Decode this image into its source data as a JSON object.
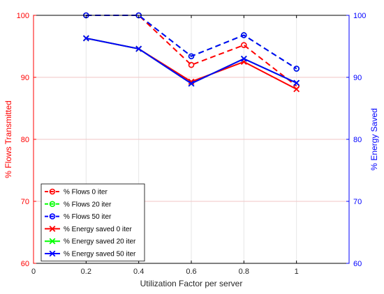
{
  "chart_data": {
    "type": "line",
    "xlabel": "Utilization Factor per server",
    "ylabel_left": "% Flows Transmitted",
    "ylabel_right": "% Energy Saved",
    "xlim": [
      0,
      1.2
    ],
    "ylim_left": [
      60,
      100
    ],
    "ylim_right": [
      60,
      100
    ],
    "x_ticks": [
      "0",
      "0.2",
      "0.4",
      "0.6",
      "0.8",
      "1"
    ],
    "y_ticks_left": [
      "60",
      "70",
      "80",
      "90",
      "100"
    ],
    "y_ticks_right": [
      "60",
      "70",
      "80",
      "90",
      "100"
    ],
    "grid": true,
    "legend_position": "bottom-left",
    "colors": {
      "left_axis": "#ff0000",
      "right_axis": "#0000ff",
      "grid": "#f2c6c6"
    },
    "x": [
      0.2,
      0.4,
      0.6,
      0.8,
      1.0
    ],
    "series": [
      {
        "name": "% Flows 0 iter",
        "color": "#ff0000",
        "dash": true,
        "marker": "circle",
        "values": [
          100,
          100,
          92.0,
          95.2,
          88.6
        ]
      },
      {
        "name": "% Flows 20 iter",
        "color": "#00ff00",
        "dash": true,
        "marker": "circle",
        "values": [
          100,
          100,
          93.4,
          96.8,
          91.4
        ]
      },
      {
        "name": "% Flows 50 iter",
        "color": "#0000ff",
        "dash": true,
        "marker": "circle",
        "values": [
          100,
          100,
          93.4,
          96.8,
          91.4
        ]
      },
      {
        "name": "% Energy saved 0 iter",
        "color": "#ff0000",
        "dash": false,
        "marker": "x",
        "values": [
          96.3,
          94.6,
          89.3,
          92.5,
          88.1
        ]
      },
      {
        "name": "% Energy saved 20 iter",
        "color": "#00ff00",
        "dash": false,
        "marker": "x",
        "values": [
          96.3,
          94.6,
          89.0,
          93.0,
          89.1
        ]
      },
      {
        "name": "% Energy saved 50 iter",
        "color": "#0000ff",
        "dash": false,
        "marker": "x",
        "values": [
          96.3,
          94.6,
          89.0,
          93.0,
          89.1
        ]
      }
    ]
  }
}
